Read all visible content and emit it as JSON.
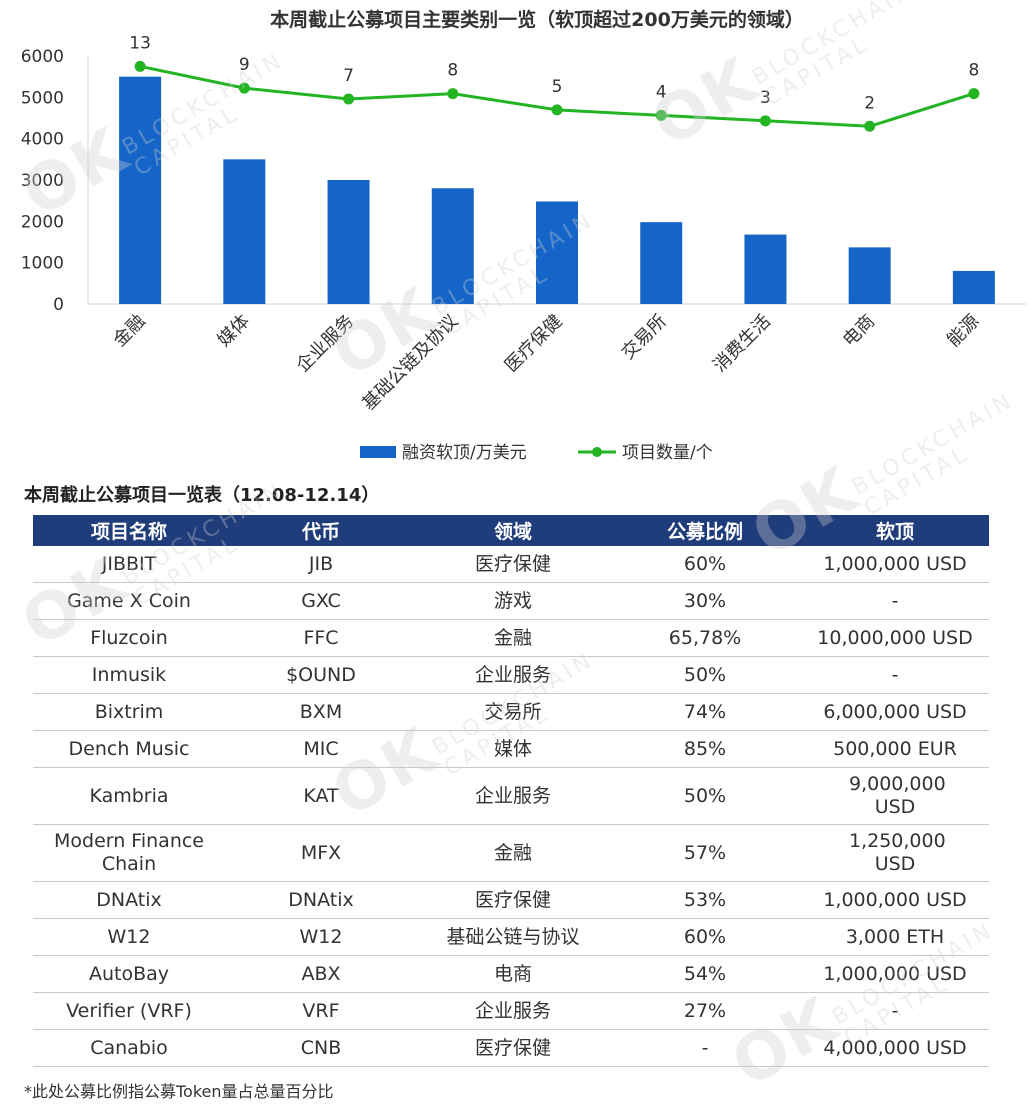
{
  "chart_data": {
    "type": "bar+line",
    "title": "本周截止公募项目主要类别一览（软顶超过200万美元的领域）",
    "categories": [
      "金融",
      "媒体",
      "企业服务",
      "基础公链及协议",
      "医疗保健",
      "交易所",
      "消费生活",
      "电商",
      "能源"
    ],
    "series": [
      {
        "name": "融资软顶/万美元",
        "type": "bar",
        "color": "#1565c9",
        "values": [
          5500,
          3500,
          3000,
          2800,
          2480,
          1980,
          1680,
          1370,
          800
        ]
      },
      {
        "name": "项目数量/个",
        "type": "line",
        "color": "#22b422",
        "values": [
          13,
          9,
          7,
          8,
          5,
          4,
          3,
          2,
          8
        ]
      }
    ],
    "y_left": {
      "min": 0,
      "max": 6000,
      "ticks": [
        "0",
        "1000",
        "2000",
        "3000",
        "4000",
        "5000",
        "6000"
      ]
    },
    "y_right_hidden": {
      "min": 0,
      "max": 30
    },
    "legend_position": "bottom"
  },
  "watermark": {
    "logo": "OK",
    "line1": "BLOCKCHAIN",
    "line2": "CAPITAL"
  },
  "table": {
    "title": "本周截止公募项目一览表（12.08-12.14）",
    "headers": [
      "项目名称",
      "代币",
      "领域",
      "公募比例",
      "软顶"
    ],
    "rows": [
      [
        "JIBBIT",
        "JIB",
        "医疗保健",
        "60%",
        "1,000,000 USD"
      ],
      [
        "Game X Coin",
        "GXC",
        "游戏",
        "30%",
        "-"
      ],
      [
        "Fluzcoin",
        "FFC",
        "金融",
        "65,78%",
        "10,000,000 USD"
      ],
      [
        "Inmusik",
        "$OUND",
        "企业服务",
        "50%",
        "-"
      ],
      [
        "Bixtrim",
        "BXM",
        "交易所",
        "74%",
        "6,000,000 USD"
      ],
      [
        "Dench Music",
        "MIC",
        "媒体",
        "85%",
        "500,000 EUR"
      ],
      [
        "Kambria",
        "KAT",
        "企业服务",
        "50%",
        "9,000,000 USD"
      ],
      [
        "Modern Finance Chain",
        "MFX",
        "金融",
        "57%",
        "1,250,000 USD"
      ],
      [
        "DNAtix",
        "DNAtix",
        "医疗保健",
        "53%",
        "1,000,000 USD"
      ],
      [
        "W12",
        "W12",
        "基础公链与协议",
        "60%",
        "3,000 ETH"
      ],
      [
        "AutoBay",
        "ABX",
        "电商",
        "54%",
        "1,000,000 USD"
      ],
      [
        "Verifier (VRF)",
        "VRF",
        "企业服务",
        "27%",
        "-"
      ],
      [
        "Canabio",
        "CNB",
        "医疗保健",
        "-",
        "4,000,000 USD"
      ]
    ],
    "footnote": "*此处公募比例指公募Token量占总量百分比"
  }
}
